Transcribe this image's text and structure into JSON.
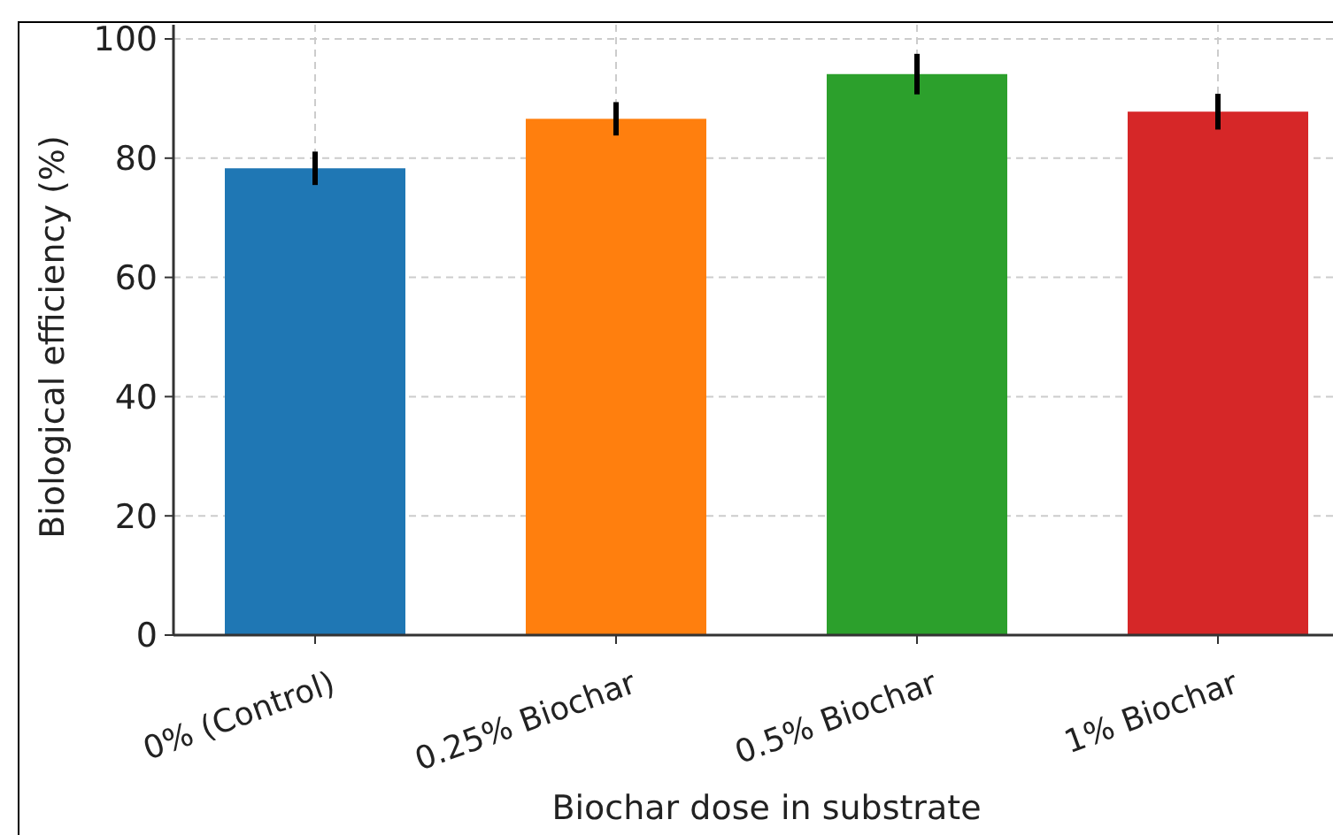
{
  "chart_data": {
    "type": "bar",
    "xlabel": "Biochar dose in substrate",
    "ylabel": "Biological efficiency (%)",
    "categories": [
      "0% (Control)",
      "0.25% Biochar",
      "0.5% Biochar",
      "1% Biochar"
    ],
    "values": [
      78.3,
      86.6,
      94.1,
      87.8
    ],
    "errors": [
      2.8,
      2.8,
      3.4,
      3
    ],
    "colors": [
      "#1f77b4",
      "#ff7f0e",
      "#2ca02c",
      "#d62728"
    ],
    "ylim": [
      0,
      100
    ],
    "yticks": [
      0,
      20,
      40,
      60,
      80,
      100
    ],
    "grid": true
  }
}
